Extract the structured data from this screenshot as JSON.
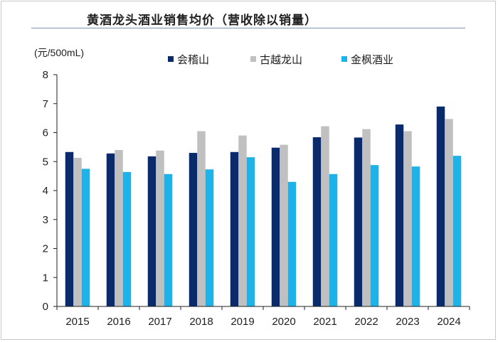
{
  "chart_data": {
    "type": "bar",
    "title": "黄酒龙头酒业销售均价（营收除以销量）",
    "unit_label": "(元/500mL)",
    "categories": [
      "2015",
      "2016",
      "2017",
      "2018",
      "2019",
      "2020",
      "2021",
      "2022",
      "2023",
      "2024"
    ],
    "series": [
      {
        "name": "会稽山",
        "color": "#0b2a6a",
        "values": [
          5.33,
          5.28,
          5.18,
          5.3,
          5.33,
          5.48,
          5.84,
          5.83,
          6.28,
          6.9
        ]
      },
      {
        "name": "古越龙山",
        "color": "#c0c0c0",
        "values": [
          5.13,
          5.4,
          5.38,
          6.05,
          5.9,
          5.58,
          6.22,
          6.12,
          6.05,
          6.47
        ]
      },
      {
        "name": "金枫酒业",
        "color": "#1cb2ea",
        "values": [
          4.75,
          4.64,
          4.57,
          4.73,
          5.15,
          4.3,
          4.57,
          4.88,
          4.83,
          5.2
        ]
      }
    ],
    "ylim": [
      0,
      8
    ],
    "yticks": [
      0,
      1,
      2,
      3,
      4,
      5,
      6,
      7,
      8
    ],
    "legend_position": "top-center",
    "grid": false
  }
}
